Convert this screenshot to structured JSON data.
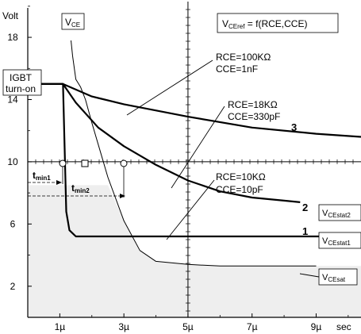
{
  "chart_data": {
    "type": "line",
    "title": "",
    "ylabel": "Volt",
    "xlabel": "sec",
    "x_ticks": [
      "1µ",
      "3µ",
      "5µ",
      "7µ",
      "9µ"
    ],
    "x_tick_values": [
      1,
      3,
      5,
      7,
      9
    ],
    "y_ticks": [
      "2",
      "6",
      "10",
      "14",
      "18"
    ],
    "y_tick_values": [
      2,
      6,
      10,
      14,
      18
    ],
    "xlim": [
      0,
      10.4
    ],
    "ylim": [
      0,
      20.4
    ],
    "threshold_v": 10,
    "shaded_level_v": 8.5,
    "series": [
      {
        "name": "1",
        "values": [
          [
            0,
            15
          ],
          [
            1.1,
            15
          ],
          [
            1.15,
            11
          ],
          [
            1.2,
            6.8
          ],
          [
            1.3,
            5.6
          ],
          [
            1.5,
            5.2
          ],
          [
            10.4,
            5.2
          ]
        ]
      },
      {
        "name": "2",
        "values": [
          [
            0,
            15
          ],
          [
            1.1,
            15
          ],
          [
            1.5,
            13.8
          ],
          [
            2.2,
            12.2
          ],
          [
            3,
            11
          ],
          [
            4,
            9.8
          ],
          [
            5,
            8.8
          ],
          [
            6,
            8.1
          ],
          [
            7,
            7.7
          ],
          [
            8,
            7.5
          ],
          [
            8.5,
            7.4
          ]
        ]
      },
      {
        "name": "3",
        "values": [
          [
            0,
            15
          ],
          [
            1.1,
            15
          ],
          [
            2,
            14.2
          ],
          [
            3,
            13.7
          ],
          [
            5,
            12.9
          ],
          [
            7,
            12.2
          ],
          [
            9,
            11.8
          ],
          [
            10.4,
            11.6
          ]
        ]
      },
      {
        "name": "VCE",
        "values": [
          [
            1.35,
            17.8
          ],
          [
            1.4,
            16.8
          ],
          [
            1.5,
            15.3
          ],
          [
            1.65,
            14.8
          ],
          [
            1.8,
            14
          ],
          [
            2,
            12.5
          ],
          [
            2.5,
            9
          ],
          [
            3,
            6.2
          ],
          [
            3.5,
            4.3
          ],
          [
            4,
            3.6
          ],
          [
            5,
            3.4
          ],
          [
            6,
            3.3
          ],
          [
            7,
            3.3
          ],
          [
            8,
            3.3
          ],
          [
            9,
            3.3
          ]
        ]
      }
    ],
    "labels": {
      "ylabel": "Volt",
      "xlabel": "sec",
      "igbt": [
        "IGBT",
        "turn-on"
      ],
      "vce_box_main": "V",
      "vce_box_sub": "CE",
      "formula_main": "V",
      "formula_sub": "CEref",
      "formula_rest": " = f(RCE,CCE)",
      "rce1": "RCE=100KΩ",
      "cce1": "CCE=1nF",
      "rce2": "RCE=18KΩ",
      "cce2": "CCE=330pF",
      "rce3": "RCE=10KΩ",
      "cce3": "CCE=10pF",
      "num3": "3",
      "num2": "2",
      "num1": "1",
      "tmin1_main": "t",
      "tmin1_sub": "min1",
      "tmin2_main": "t",
      "tmin2_sub": "min2",
      "vcestat2_main": "V",
      "vcestat2_sub": "CEstat2",
      "vcestat1_main": "V",
      "vcestat1_sub": "CEstat1",
      "vcesat_main": "V",
      "vcesat_sub": "CEsat"
    }
  }
}
